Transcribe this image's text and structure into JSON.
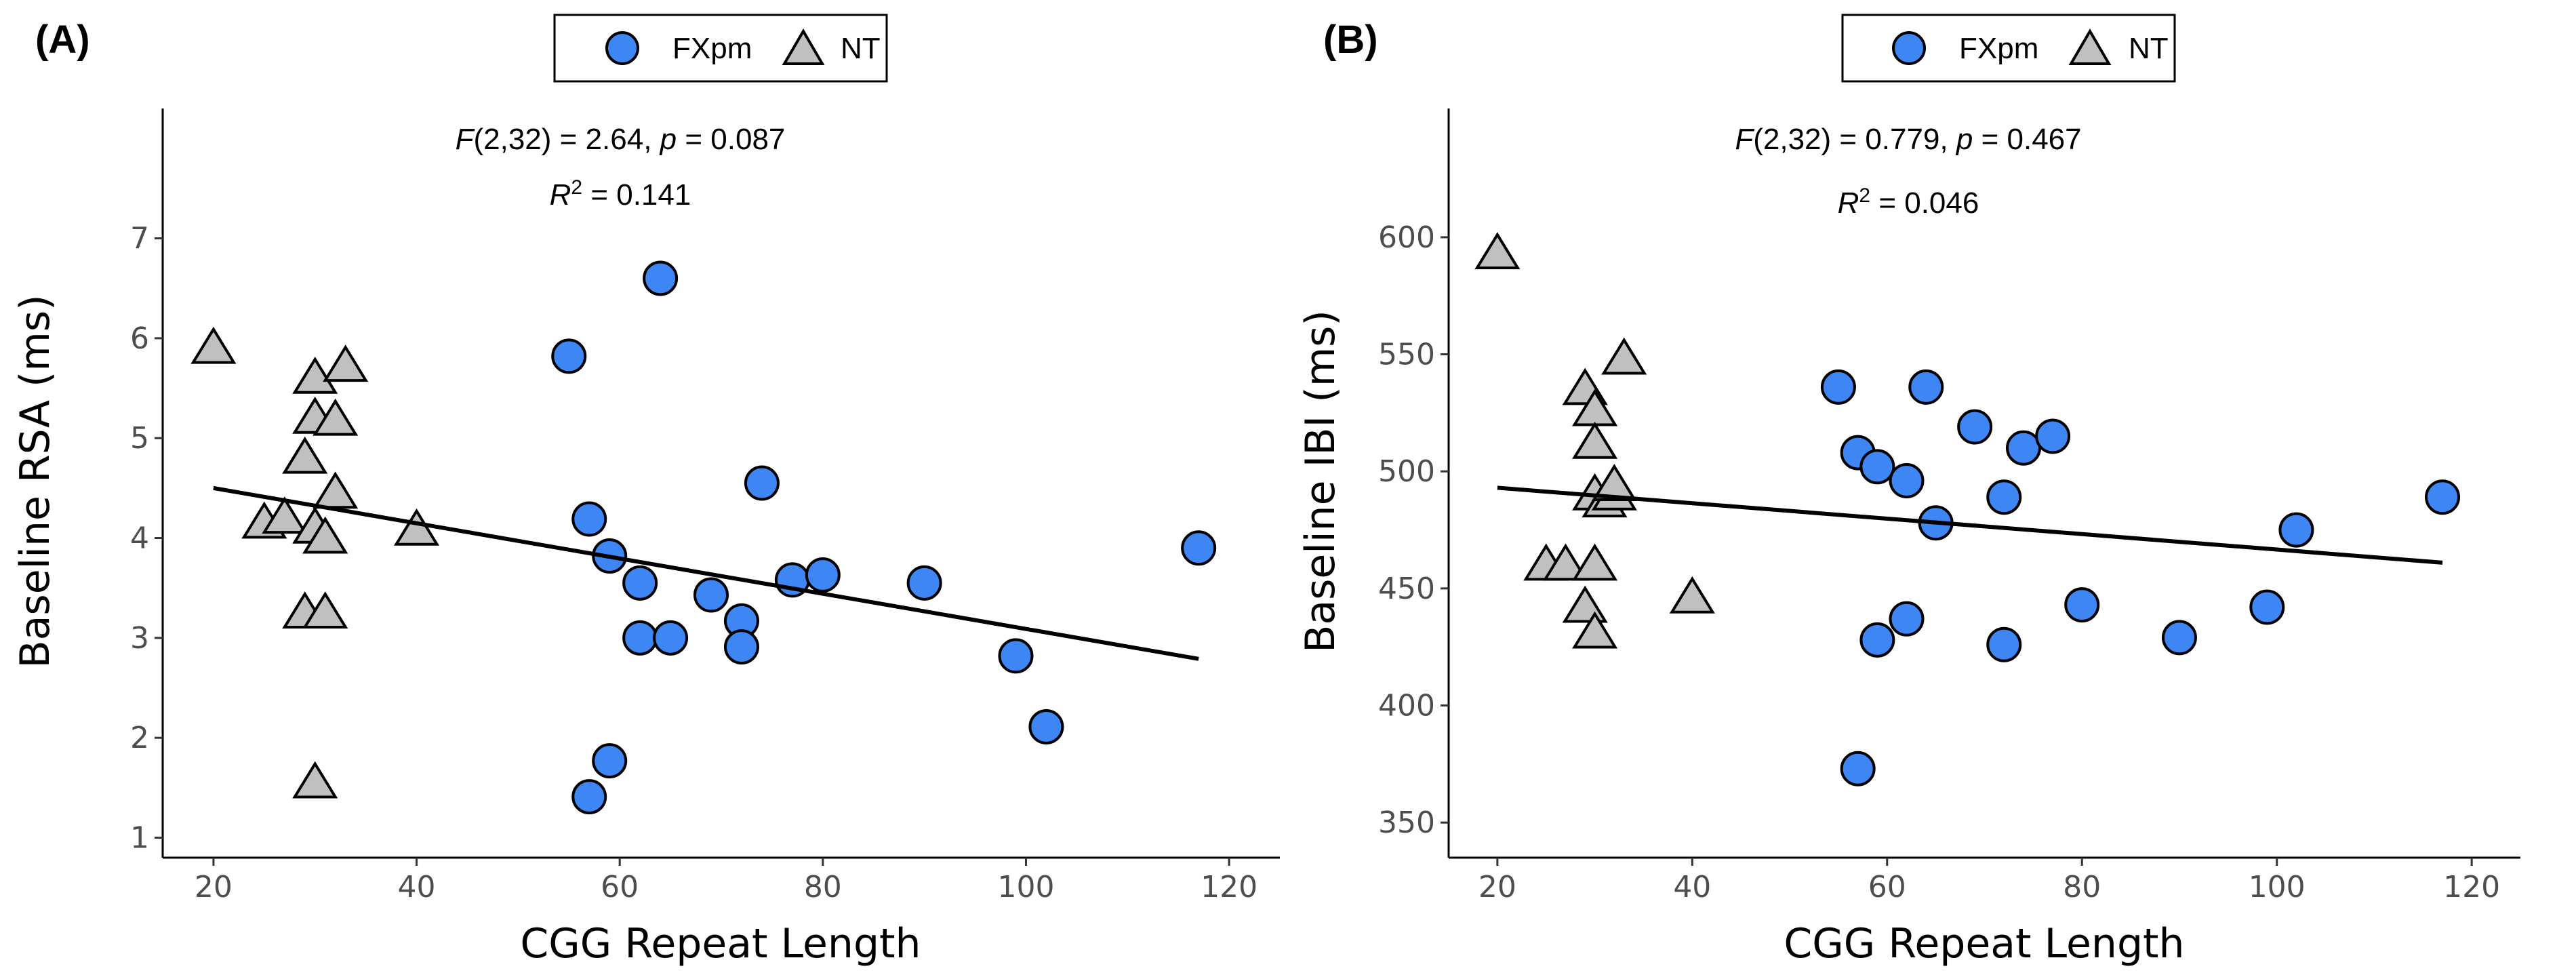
{
  "chart_data": [
    {
      "type": "scatter",
      "panel_label": "(A)",
      "xlabel": "CGG Repeat Length",
      "ylabel": "Baseline RSA (ms)",
      "xlim": [
        15,
        125
      ],
      "ylim": [
        0.8,
        8.3
      ],
      "xticks": [
        20,
        40,
        60,
        80,
        100,
        120
      ],
      "yticks": [
        1,
        2,
        3,
        4,
        5,
        6,
        7
      ],
      "grid": false,
      "legend": {
        "position": "top-center",
        "entries": [
          {
            "label": "FXpm",
            "marker": "circle"
          },
          {
            "label": "NT",
            "marker": "triangle"
          }
        ]
      },
      "annotation": {
        "f_label": "F",
        "f_stat": "(2,32) = 2.64, ",
        "p_label": "p",
        "p_value": " = 0.087",
        "r2_label": "R",
        "r2_sup": "2",
        "r2_value": " = 0.141"
      },
      "series": [
        {
          "name": "FXpm",
          "marker": "circle",
          "color": "#3d86f3",
          "points": [
            [
              55,
              5.82
            ],
            [
              57,
              4.19
            ],
            [
              57,
              1.41
            ],
            [
              59,
              3.82
            ],
            [
              59,
              1.77
            ],
            [
              62,
              3.55
            ],
            [
              62,
              3.0
            ],
            [
              64,
              6.6
            ],
            [
              65,
              3.0
            ],
            [
              69,
              3.43
            ],
            [
              72,
              3.17
            ],
            [
              72,
              2.91
            ],
            [
              74,
              4.55
            ],
            [
              77,
              3.58
            ],
            [
              80,
              3.63
            ],
            [
              90,
              3.55
            ],
            [
              99,
              2.82
            ],
            [
              102,
              2.11
            ],
            [
              117,
              3.9
            ]
          ]
        },
        {
          "name": "NT",
          "marker": "triangle",
          "color": "#c0c0c0",
          "points": [
            [
              20,
              5.9
            ],
            [
              25,
              4.15
            ],
            [
              27,
              4.2
            ],
            [
              29,
              4.8
            ],
            [
              29,
              3.25
            ],
            [
              30,
              5.6
            ],
            [
              30,
              5.2
            ],
            [
              30,
              4.1
            ],
            [
              30,
              1.55
            ],
            [
              31,
              4.0
            ],
            [
              31,
              3.25
            ],
            [
              32,
              5.18
            ],
            [
              32,
              4.45
            ],
            [
              33,
              5.72
            ],
            [
              40,
              4.08
            ]
          ]
        }
      ],
      "fit_line": {
        "x": [
          20,
          117
        ],
        "y": [
          4.5,
          2.79
        ]
      }
    },
    {
      "type": "scatter",
      "panel_label": "(B)",
      "xlabel": "CGG Repeat Length",
      "ylabel": "Baseline IBI (ms)",
      "xlim": [
        15,
        125
      ],
      "ylim": [
        335,
        655
      ],
      "xticks": [
        20,
        40,
        60,
        80,
        100,
        120
      ],
      "yticks": [
        350,
        400,
        450,
        500,
        550,
        600
      ],
      "grid": false,
      "legend": {
        "position": "top-center",
        "entries": [
          {
            "label": "FXpm",
            "marker": "circle"
          },
          {
            "label": "NT",
            "marker": "triangle"
          }
        ]
      },
      "annotation": {
        "f_label": "F",
        "f_stat": "(2,32) = 0.779, ",
        "p_label": "p",
        "p_value": " = 0.467",
        "r2_label": "R",
        "r2_sup": "2",
        "r2_value": " = 0.046"
      },
      "series": [
        {
          "name": "FXpm",
          "marker": "circle",
          "color": "#3d86f3",
          "points": [
            [
              55,
              536
            ],
            [
              57,
              508
            ],
            [
              57,
              373
            ],
            [
              59,
              502
            ],
            [
              59,
              428
            ],
            [
              62,
              496
            ],
            [
              62,
              437
            ],
            [
              64,
              536
            ],
            [
              65,
              478
            ],
            [
              69,
              519
            ],
            [
              72,
              489
            ],
            [
              72,
              426
            ],
            [
              74,
              510
            ],
            [
              77,
              515
            ],
            [
              80,
              443
            ],
            [
              90,
              429
            ],
            [
              99,
              442
            ],
            [
              102,
              475
            ],
            [
              117,
              489
            ]
          ]
        },
        {
          "name": "NT",
          "marker": "triangle",
          "color": "#c0c0c0",
          "points": [
            [
              20,
              593
            ],
            [
              25,
              460
            ],
            [
              27,
              460
            ],
            [
              29,
              535
            ],
            [
              29,
              442
            ],
            [
              30,
              526
            ],
            [
              30,
              512
            ],
            [
              30,
              490
            ],
            [
              30,
              460
            ],
            [
              30,
              431
            ],
            [
              31,
              487
            ],
            [
              32,
              490
            ],
            [
              32,
              494
            ],
            [
              33,
              548
            ],
            [
              40,
              446
            ]
          ]
        }
      ],
      "fit_line": {
        "x": [
          20,
          117
        ],
        "y": [
          493,
          461
        ]
      }
    }
  ]
}
